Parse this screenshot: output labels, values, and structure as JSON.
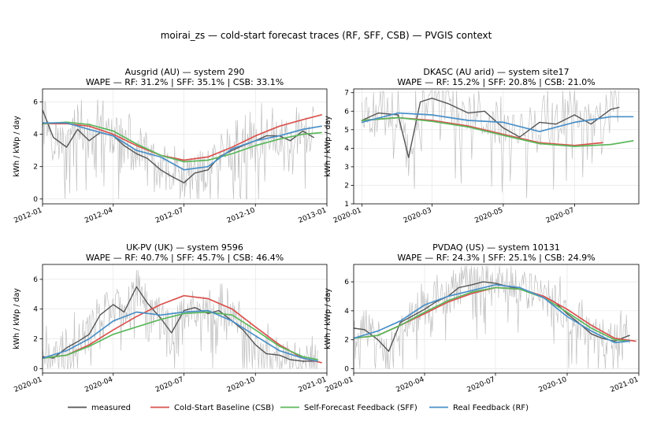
{
  "figure": {
    "title": "moirai_zs — cold-start forecast traces (RF, SFF, CSB) — PVGIS context"
  },
  "legend": {
    "placement": "bottom",
    "entries": [
      {
        "label": "measured",
        "color": "#555555"
      },
      {
        "label": "Cold-Start Baseline (CSB)",
        "color": "#d9534f"
      },
      {
        "label": "Self-Forecast Feedback (SFF)",
        "color": "#5cb85c"
      },
      {
        "label": "Real Feedback (RF)",
        "color": "#4a90c8"
      }
    ]
  },
  "colors": {
    "raw": "#c0c0c0",
    "measured": "#555555",
    "csb": "#d9534f",
    "sff": "#5cb85c",
    "rf": "#4a90c8"
  },
  "chart_data": [
    {
      "type": "line",
      "title": "Ausgrid (AU) — system 290",
      "subtitle": "WAPE — RF: 31.2% | SFF: 35.1% | CSB: 33.1%",
      "ylabel": "kWh / kWp / day",
      "x_range": [
        "2012-01-01",
        "2013-01-01"
      ],
      "ylim": [
        -0.3,
        6.8
      ],
      "yticks": [
        0,
        2,
        4,
        6
      ],
      "xticks": [
        {
          "label": "2012-01",
          "date": "2012-01-01"
        },
        {
          "label": "2012-04",
          "date": "2012-04-01"
        },
        {
          "label": "2012-07",
          "date": "2012-07-01"
        },
        {
          "label": "2012-10",
          "date": "2012-10-01"
        },
        {
          "label": "2013-01",
          "date": "2013-01-01"
        }
      ],
      "grid": true,
      "series": [
        {
          "key": "measured",
          "x": [
            "2012-01-01",
            "2012-01-15",
            "2012-02-01",
            "2012-02-15",
            "2012-03-01",
            "2012-03-15",
            "2012-04-01",
            "2012-04-15",
            "2012-05-01",
            "2012-05-15",
            "2012-06-01",
            "2012-06-15",
            "2012-07-01",
            "2012-07-15",
            "2012-08-01",
            "2012-08-15",
            "2012-09-01",
            "2012-09-15",
            "2012-10-01",
            "2012-10-15",
            "2012-11-01",
            "2012-11-15",
            "2012-12-01",
            "2012-12-15"
          ],
          "y": [
            5.5,
            3.8,
            3.2,
            4.3,
            3.6,
            4.1,
            3.9,
            3.3,
            2.8,
            2.5,
            1.8,
            1.4,
            1.0,
            1.6,
            1.8,
            2.6,
            3.0,
            3.3,
            3.6,
            3.9,
            3.9,
            3.6,
            4.2,
            3.8
          ]
        },
        {
          "key": "csb",
          "x": [
            "2012-01-01",
            "2012-02-01",
            "2012-03-01",
            "2012-04-01",
            "2012-05-01",
            "2012-06-01",
            "2012-07-01",
            "2012-08-01",
            "2012-09-01",
            "2012-10-01",
            "2012-11-01",
            "2012-12-01",
            "2012-12-25"
          ],
          "y": [
            4.65,
            4.65,
            4.5,
            4.0,
            3.3,
            2.7,
            2.4,
            2.6,
            3.2,
            3.9,
            4.5,
            4.9,
            5.2
          ]
        },
        {
          "key": "sff",
          "x": [
            "2012-01-01",
            "2012-02-01",
            "2012-03-01",
            "2012-04-01",
            "2012-05-01",
            "2012-06-01",
            "2012-07-01",
            "2012-08-01",
            "2012-09-01",
            "2012-10-01",
            "2012-11-01",
            "2012-12-01",
            "2012-12-25"
          ],
          "y": [
            4.65,
            4.75,
            4.6,
            4.2,
            3.4,
            2.7,
            2.3,
            2.4,
            2.8,
            3.3,
            3.7,
            4.0,
            4.1
          ]
        },
        {
          "key": "rf",
          "x": [
            "2012-01-01",
            "2012-02-01",
            "2012-03-01",
            "2012-04-01",
            "2012-05-01",
            "2012-06-01",
            "2012-07-01",
            "2012-08-01",
            "2012-09-01",
            "2012-10-01",
            "2012-11-01",
            "2012-12-01",
            "2012-12-25"
          ],
          "y": [
            4.7,
            4.7,
            4.3,
            3.9,
            3.0,
            2.6,
            1.8,
            2.0,
            3.1,
            3.6,
            3.9,
            4.3,
            4.5
          ]
        }
      ]
    },
    {
      "type": "line",
      "title": "DKASC (AU arid) — system site17",
      "subtitle": "WAPE — RF: 15.2% | SFF: 20.8% | CSB: 21.0%",
      "ylabel": "kWh / kWp / day",
      "x_range": [
        "2019-12-25",
        "2020-08-25"
      ],
      "ylim": [
        1,
        7.2
      ],
      "yticks": [
        1,
        2,
        3,
        4,
        5,
        6,
        7
      ],
      "xticks": [
        {
          "label": "2020-01",
          "date": "2020-01-01"
        },
        {
          "label": "2020-03",
          "date": "2020-03-01"
        },
        {
          "label": "2020-05",
          "date": "2020-05-01"
        },
        {
          "label": "2020-07",
          "date": "2020-07-01"
        }
      ],
      "grid": true,
      "series": [
        {
          "key": "measured",
          "x": [
            "2020-01-01",
            "2020-01-15",
            "2020-02-01",
            "2020-02-10",
            "2020-02-20",
            "2020-03-01",
            "2020-03-15",
            "2020-04-01",
            "2020-04-15",
            "2020-05-01",
            "2020-05-15",
            "2020-06-01",
            "2020-06-15",
            "2020-07-01",
            "2020-07-15",
            "2020-08-01",
            "2020-08-08"
          ],
          "y": [
            5.5,
            5.9,
            5.8,
            3.5,
            6.5,
            6.7,
            6.4,
            5.9,
            6.0,
            5.1,
            4.6,
            5.4,
            5.3,
            5.8,
            5.3,
            6.1,
            6.2
          ]
        },
        {
          "key": "csb",
          "x": [
            "2020-01-01",
            "2020-02-01",
            "2020-03-01",
            "2020-04-01",
            "2020-05-01",
            "2020-06-01",
            "2020-07-01",
            "2020-07-25"
          ],
          "y": [
            5.5,
            5.65,
            5.5,
            5.2,
            4.75,
            4.3,
            4.15,
            4.3
          ]
        },
        {
          "key": "sff",
          "x": [
            "2020-01-01",
            "2020-02-01",
            "2020-03-01",
            "2020-04-01",
            "2020-05-01",
            "2020-06-01",
            "2020-07-01",
            "2020-08-01",
            "2020-08-20"
          ],
          "y": [
            5.5,
            5.65,
            5.45,
            5.15,
            4.7,
            4.25,
            4.1,
            4.2,
            4.4
          ]
        },
        {
          "key": "rf",
          "x": [
            "2020-01-01",
            "2020-02-01",
            "2020-03-01",
            "2020-04-01",
            "2020-05-01",
            "2020-06-01",
            "2020-07-01",
            "2020-08-01",
            "2020-08-20"
          ],
          "y": [
            5.4,
            5.9,
            5.8,
            5.5,
            5.4,
            4.9,
            5.4,
            5.7,
            5.7
          ]
        }
      ]
    },
    {
      "type": "line",
      "title": "UK-PV (UK) — system 9596",
      "subtitle": "WAPE — RF: 40.7% | SFF: 45.7% | CSB: 46.4%",
      "ylabel": "kWh / kWp / day",
      "x_range": [
        "2020-01-01",
        "2021-01-01"
      ],
      "ylim": [
        -0.3,
        7.0
      ],
      "yticks": [
        0,
        2,
        4,
        6
      ],
      "xticks": [
        {
          "label": "2020-01",
          "date": "2020-01-01"
        },
        {
          "label": "2020-04",
          "date": "2020-04-01"
        },
        {
          "label": "2020-07",
          "date": "2020-07-01"
        },
        {
          "label": "2020-10",
          "date": "2020-10-01"
        },
        {
          "label": "2021-01",
          "date": "2021-01-01"
        }
      ],
      "grid": true,
      "series": [
        {
          "key": "measured",
          "x": [
            "2020-01-01",
            "2020-01-15",
            "2020-02-01",
            "2020-02-15",
            "2020-03-01",
            "2020-03-15",
            "2020-04-01",
            "2020-04-15",
            "2020-05-01",
            "2020-05-15",
            "2020-06-01",
            "2020-06-15",
            "2020-07-01",
            "2020-07-15",
            "2020-08-01",
            "2020-08-15",
            "2020-09-01",
            "2020-09-15",
            "2020-10-01",
            "2020-10-15",
            "2020-11-01",
            "2020-11-15",
            "2020-12-01",
            "2020-12-20"
          ],
          "y": [
            0.8,
            0.7,
            1.4,
            1.8,
            2.3,
            3.6,
            4.3,
            3.8,
            5.5,
            4.4,
            3.4,
            2.4,
            3.9,
            4.1,
            3.7,
            3.9,
            3.2,
            2.6,
            1.6,
            1.0,
            0.9,
            0.6,
            0.5,
            0.5
          ]
        },
        {
          "key": "csb",
          "x": [
            "2020-01-01",
            "2020-02-01",
            "2020-03-01",
            "2020-04-01",
            "2020-05-01",
            "2020-06-01",
            "2020-07-01",
            "2020-08-01",
            "2020-09-01",
            "2020-10-01",
            "2020-11-01",
            "2020-12-01",
            "2020-12-25"
          ],
          "y": [
            0.7,
            0.9,
            1.6,
            2.6,
            3.5,
            4.3,
            4.9,
            4.7,
            4.0,
            2.8,
            1.6,
            0.7,
            0.4
          ]
        },
        {
          "key": "sff",
          "x": [
            "2020-01-01",
            "2020-02-01",
            "2020-03-01",
            "2020-04-01",
            "2020-05-01",
            "2020-06-01",
            "2020-07-01",
            "2020-08-01",
            "2020-09-01",
            "2020-10-01",
            "2020-11-01",
            "2020-12-01",
            "2020-12-20"
          ],
          "y": [
            0.7,
            0.9,
            1.5,
            2.3,
            2.8,
            3.3,
            3.7,
            3.8,
            3.6,
            2.6,
            1.5,
            0.8,
            0.6
          ]
        },
        {
          "key": "rf",
          "x": [
            "2020-01-01",
            "2020-02-01",
            "2020-03-01",
            "2020-04-01",
            "2020-05-01",
            "2020-06-01",
            "2020-07-01",
            "2020-08-01",
            "2020-09-01",
            "2020-10-01",
            "2020-11-01",
            "2020-12-01",
            "2020-12-20"
          ],
          "y": [
            0.7,
            1.2,
            2.0,
            3.2,
            3.8,
            3.6,
            3.8,
            3.9,
            3.2,
            2.2,
            1.2,
            0.7,
            0.5
          ]
        }
      ]
    },
    {
      "type": "line",
      "title": "PVDAQ (US) — system 10131",
      "subtitle": "WAPE — RF: 24.3% | SFF: 25.1% | CSB: 24.9%",
      "ylabel": "kWh / kWp / day",
      "x_range": [
        "2020-01-01",
        "2021-01-01"
      ],
      "ylim": [
        -0.3,
        7.2
      ],
      "yticks": [
        0,
        2,
        4,
        6
      ],
      "xticks": [
        {
          "label": "2020-01",
          "date": "2020-01-01"
        },
        {
          "label": "2020-04",
          "date": "2020-04-01"
        },
        {
          "label": "2020-07",
          "date": "2020-07-01"
        },
        {
          "label": "2020-10",
          "date": "2020-10-01"
        },
        {
          "label": "2021-01",
          "date": "2021-01-01"
        }
      ],
      "grid": true,
      "series": [
        {
          "key": "measured",
          "x": [
            "2020-01-01",
            "2020-01-15",
            "2020-02-01",
            "2020-02-15",
            "2020-03-01",
            "2020-03-15",
            "2020-04-01",
            "2020-04-15",
            "2020-05-01",
            "2020-05-15",
            "2020-06-01",
            "2020-06-15",
            "2020-07-01",
            "2020-07-15",
            "2020-08-01",
            "2020-08-15",
            "2020-09-01",
            "2020-09-15",
            "2020-10-01",
            "2020-10-15",
            "2020-11-01",
            "2020-11-15",
            "2020-12-01",
            "2020-12-20"
          ],
          "y": [
            2.8,
            2.7,
            2.0,
            1.2,
            3.2,
            3.6,
            4.1,
            4.6,
            5.0,
            5.6,
            5.8,
            6.0,
            5.9,
            5.7,
            5.5,
            5.3,
            5.0,
            4.6,
            3.8,
            3.2,
            2.4,
            2.1,
            1.9,
            2.3
          ]
        },
        {
          "key": "csb",
          "x": [
            "2020-01-01",
            "2020-02-01",
            "2020-03-01",
            "2020-04-01",
            "2020-05-01",
            "2020-06-01",
            "2020-07-01",
            "2020-08-01",
            "2020-09-01",
            "2020-10-01",
            "2020-11-01",
            "2020-12-01",
            "2020-12-28"
          ],
          "y": [
            2.1,
            2.3,
            3.0,
            3.8,
            4.6,
            5.2,
            5.6,
            5.5,
            5.0,
            4.1,
            3.0,
            2.1,
            1.9
          ]
        },
        {
          "key": "sff",
          "x": [
            "2020-01-01",
            "2020-02-01",
            "2020-03-01",
            "2020-04-01",
            "2020-05-01",
            "2020-06-01",
            "2020-07-01",
            "2020-08-01",
            "2020-09-01",
            "2020-10-01",
            "2020-11-01",
            "2020-12-01",
            "2020-12-20"
          ],
          "y": [
            2.1,
            2.3,
            3.0,
            3.9,
            4.7,
            5.3,
            5.6,
            5.5,
            4.9,
            3.9,
            2.8,
            2.0,
            1.9
          ]
        },
        {
          "key": "rf",
          "x": [
            "2020-01-01",
            "2020-02-01",
            "2020-03-01",
            "2020-04-01",
            "2020-05-01",
            "2020-06-01",
            "2020-07-01",
            "2020-08-01",
            "2020-09-01",
            "2020-10-01",
            "2020-11-01",
            "2020-12-01",
            "2020-12-20"
          ],
          "y": [
            2.1,
            2.6,
            3.3,
            4.4,
            5.0,
            5.4,
            5.8,
            5.6,
            4.9,
            3.6,
            2.6,
            1.8,
            1.9
          ]
        }
      ]
    }
  ]
}
